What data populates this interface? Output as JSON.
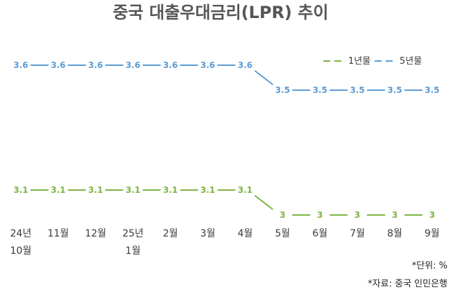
{
  "chart_data": {
    "type": "line",
    "title": "중국 대출우대금리(LPR) 추이",
    "categories": [
      [
        "24년",
        "10월"
      ],
      [
        "11월"
      ],
      [
        "12월"
      ],
      [
        "25년",
        "1월"
      ],
      [
        "2월"
      ],
      [
        "3월"
      ],
      [
        "4월"
      ],
      [
        "5월"
      ],
      [
        "6월"
      ],
      [
        "7월"
      ],
      [
        "8월"
      ],
      [
        "9월"
      ]
    ],
    "series": [
      {
        "name": "1년물",
        "color": "#7cb342",
        "values": [
          3.1,
          3.1,
          3.1,
          3.1,
          3.1,
          3.1,
          3.1,
          3,
          3,
          3,
          3,
          3
        ],
        "labels": [
          "3.1",
          "3.1",
          "3.1",
          "3.1",
          "3.1",
          "3.1",
          "3.1",
          "3",
          "3",
          "3",
          "3",
          "3"
        ]
      },
      {
        "name": "5년물",
        "color": "#5b9bd5",
        "values": [
          3.6,
          3.6,
          3.6,
          3.6,
          3.6,
          3.6,
          3.6,
          3.5,
          3.5,
          3.5,
          3.5,
          3.5
        ],
        "labels": [
          "3.6",
          "3.6",
          "3.6",
          "3.6",
          "3.6",
          "3.6",
          "3.6",
          "3.5",
          "3.5",
          "3.5",
          "3.5",
          "3.5"
        ]
      }
    ],
    "line_style": "dashed",
    "legend_position": "top-right",
    "grid": false,
    "unit_note": "*단위: %",
    "source_note": "*자료: 중국 인민은행"
  }
}
